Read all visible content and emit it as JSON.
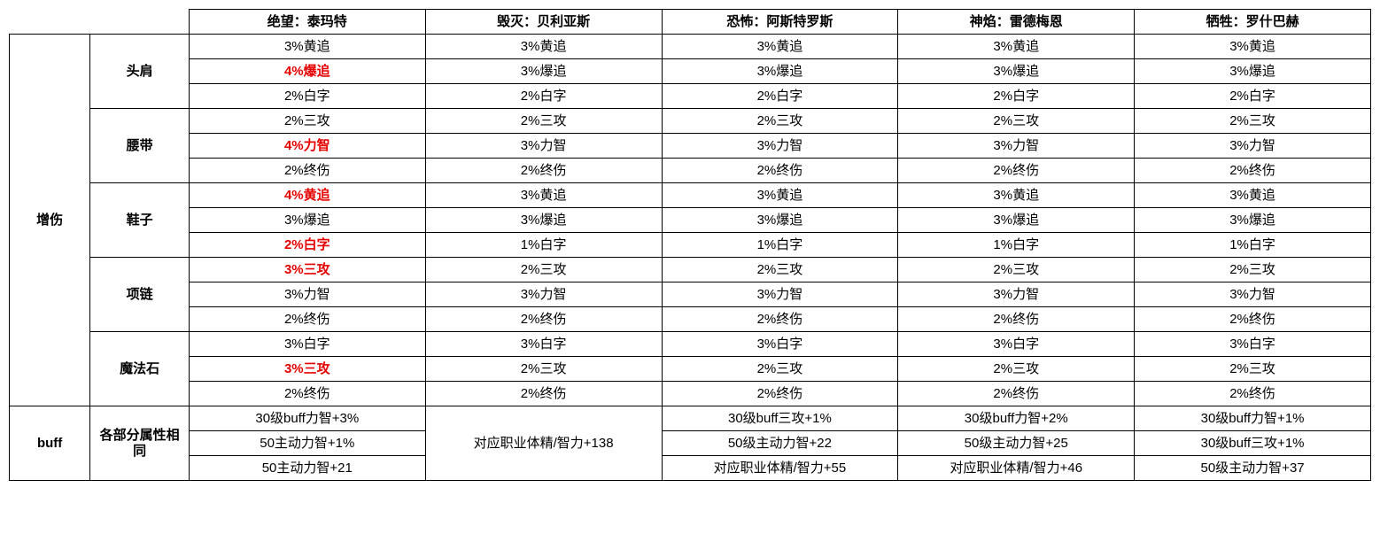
{
  "headers": {
    "c1": "绝望：泰玛特",
    "c2": "毁灭：贝利亚斯",
    "c3": "恐怖：阿斯特罗斯",
    "c4": "神焰：雷德梅恩",
    "c5": "牺牲：罗什巴赫"
  },
  "categories": {
    "dmg": "增伤",
    "buff": "buff"
  },
  "sub": {
    "shoulder": "头肩",
    "belt": "腰带",
    "shoes": "鞋子",
    "necklace": "项链",
    "stone": "魔法石",
    "buffSub": "各部分属性相同"
  },
  "dmg": {
    "shoulder": {
      "r1": {
        "c1": "3%黄追",
        "c2": "3%黄追",
        "c3": "3%黄追",
        "c4": "3%黄追",
        "c5": "3%黄追"
      },
      "r2": {
        "c1": "4%爆追",
        "c2": "3%爆追",
        "c3": "3%爆追",
        "c4": "3%爆追",
        "c5": "3%爆追",
        "c1_red": true
      },
      "r3": {
        "c1": "2%白字",
        "c2": "2%白字",
        "c3": "2%白字",
        "c4": "2%白字",
        "c5": "2%白字"
      }
    },
    "belt": {
      "r1": {
        "c1": "2%三攻",
        "c2": "2%三攻",
        "c3": "2%三攻",
        "c4": "2%三攻",
        "c5": "2%三攻"
      },
      "r2": {
        "c1": "4%力智",
        "c2": "3%力智",
        "c3": "3%力智",
        "c4": "3%力智",
        "c5": "3%力智",
        "c1_red": true
      },
      "r3": {
        "c1": "2%终伤",
        "c2": "2%终伤",
        "c3": "2%终伤",
        "c4": "2%终伤",
        "c5": "2%终伤"
      }
    },
    "shoes": {
      "r1": {
        "c1": "4%黄追",
        "c2": "3%黄追",
        "c3": "3%黄追",
        "c4": "3%黄追",
        "c5": "3%黄追",
        "c1_red": true
      },
      "r2": {
        "c1": "3%爆追",
        "c2": "3%爆追",
        "c3": "3%爆追",
        "c4": "3%爆追",
        "c5": "3%爆追"
      },
      "r3": {
        "c1": "2%白字",
        "c2": "1%白字",
        "c3": "1%白字",
        "c4": "1%白字",
        "c5": "1%白字",
        "c1_red": true
      }
    },
    "necklace": {
      "r1": {
        "c1": "3%三攻",
        "c2": "2%三攻",
        "c3": "2%三攻",
        "c4": "2%三攻",
        "c5": "2%三攻",
        "c1_red": true
      },
      "r2": {
        "c1": "3%力智",
        "c2": "3%力智",
        "c3": "3%力智",
        "c4": "3%力智",
        "c5": "3%力智"
      },
      "r3": {
        "c1": "2%终伤",
        "c2": "2%终伤",
        "c3": "2%终伤",
        "c4": "2%终伤",
        "c5": "2%终伤"
      }
    },
    "stone": {
      "r1": {
        "c1": "3%白字",
        "c2": "3%白字",
        "c3": "3%白字",
        "c4": "3%白字",
        "c5": "3%白字"
      },
      "r2": {
        "c1": "3%三攻",
        "c2": "2%三攻",
        "c3": "2%三攻",
        "c4": "2%三攻",
        "c5": "2%三攻",
        "c1_red": true
      },
      "r3": {
        "c1": "2%终伤",
        "c2": "2%终伤",
        "c3": "2%终伤",
        "c4": "2%终伤",
        "c5": "2%终伤"
      }
    }
  },
  "buff": {
    "r1": {
      "c1": "30级buff力智+3%",
      "c3": "30级buff三攻+1%",
      "c4": "30级buff力智+2%",
      "c5": "30级buff力智+1%"
    },
    "r2": {
      "c1": "50主动力智+1%",
      "c2": "对应职业体精/智力+138",
      "c3": "50级主动力智+22",
      "c4": "50级主动力智+25",
      "c5": "30级buff三攻+1%"
    },
    "r3": {
      "c1": "50主动力智+21",
      "c3": "对应职业体精/智力+55",
      "c4": "对应职业体精/智力+46",
      "c5": "50级主动力智+37"
    }
  },
  "style": {
    "red_color": "#e60000",
    "border_color": "#000000",
    "bg_color": "#ffffff",
    "font_size": 15,
    "header_weight": "bold"
  }
}
